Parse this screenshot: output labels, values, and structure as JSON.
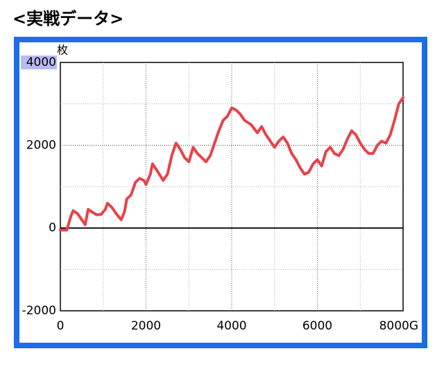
{
  "chart_data": {
    "type": "line",
    "title": "<実戦データ>",
    "y_unit": "枚",
    "xlim": [
      0,
      8000
    ],
    "ylim": [
      -2000,
      4000
    ],
    "xticks": [
      0,
      2000,
      4000,
      6000,
      {
        "value": 8000,
        "label": "8000G"
      }
    ],
    "yticks": [
      -2000,
      0,
      2000,
      4000
    ],
    "xminor": [
      1000,
      3000,
      5000,
      7000
    ],
    "yminor": [
      -1000,
      1000,
      3000
    ],
    "grid": true,
    "color": "#e8424a",
    "x": [
      0,
      150,
      250,
      300,
      400,
      500,
      580,
      650,
      750,
      850,
      950,
      1050,
      1100,
      1200,
      1300,
      1420,
      1500,
      1550,
      1650,
      1750,
      1850,
      1950,
      2000,
      2100,
      2150,
      2250,
      2400,
      2500,
      2600,
      2700,
      2800,
      2900,
      3000,
      3100,
      3200,
      3300,
      3400,
      3500,
      3600,
      3700,
      3800,
      3900,
      4000,
      4100,
      4200,
      4300,
      4450,
      4600,
      4700,
      4800,
      4900,
      5000,
      5100,
      5200,
      5300,
      5400,
      5500,
      5600,
      5700,
      5800,
      5900,
      6000,
      6100,
      6200,
      6300,
      6400,
      6500,
      6600,
      6700,
      6800,
      6900,
      7000,
      7100,
      7200,
      7300,
      7400,
      7500,
      7600,
      7700,
      7800,
      7900,
      8000
    ],
    "values": [
      -50,
      -50,
      300,
      420,
      350,
      200,
      80,
      450,
      380,
      320,
      330,
      450,
      600,
      500,
      350,
      200,
      400,
      700,
      800,
      1100,
      1200,
      1150,
      1050,
      1300,
      1550,
      1400,
      1150,
      1300,
      1750,
      2050,
      1900,
      1700,
      1600,
      1950,
      1800,
      1700,
      1600,
      1750,
      2050,
      2350,
      2600,
      2700,
      2900,
      2850,
      2750,
      2600,
      2500,
      2300,
      2450,
      2250,
      2100,
      1950,
      2100,
      2200,
      2050,
      1800,
      1650,
      1450,
      1300,
      1350,
      1550,
      1650,
      1500,
      1850,
      1950,
      1800,
      1750,
      1900,
      2150,
      2350,
      2250,
      2050,
      1900,
      1800,
      1800,
      2000,
      2100,
      2050,
      2250,
      2600,
      3000,
      3150
    ]
  }
}
